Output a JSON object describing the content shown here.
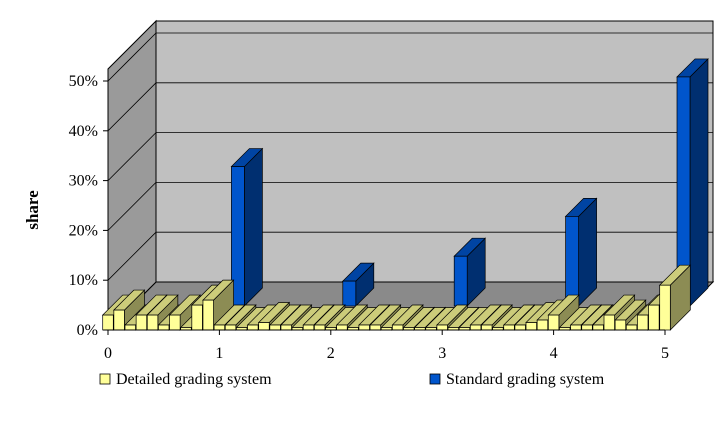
{
  "chart_data": {
    "type": "bar",
    "style": "3d",
    "title": "",
    "xlabel": "",
    "ylabel": "share",
    "ylim": [
      0,
      0.5
    ],
    "xlim": [
      0,
      5
    ],
    "x_ticks": [
      "0",
      "1",
      "2",
      "3",
      "4",
      "5"
    ],
    "y_ticks": [
      "0%",
      "10%",
      "20%",
      "30%",
      "40%",
      "50%"
    ],
    "grid": true,
    "legend_position": "bottom",
    "series": [
      {
        "name": "Detailed grading system",
        "color": "#FFFF99",
        "x": [
          0.0,
          0.1,
          0.2,
          0.3,
          0.4,
          0.5,
          0.6,
          0.7,
          0.8,
          0.9,
          1.0,
          1.1,
          1.2,
          1.3,
          1.4,
          1.5,
          1.6,
          1.7,
          1.8,
          1.9,
          2.0,
          2.1,
          2.2,
          2.3,
          2.4,
          2.5,
          2.6,
          2.7,
          2.8,
          2.9,
          3.0,
          3.1,
          3.2,
          3.3,
          3.4,
          3.5,
          3.6,
          3.7,
          3.8,
          3.9,
          4.0,
          4.1,
          4.2,
          4.3,
          4.4,
          4.5,
          4.6,
          4.7,
          4.8,
          4.9,
          5.0
        ],
        "values": [
          0.03,
          0.04,
          0.01,
          0.03,
          0.03,
          0.01,
          0.03,
          0.005,
          0.05,
          0.06,
          0.01,
          0.01,
          0.005,
          0.01,
          0.015,
          0.01,
          0.01,
          0.005,
          0.01,
          0.01,
          0.005,
          0.01,
          0.005,
          0.01,
          0.01,
          0.005,
          0.01,
          0.005,
          0.005,
          0.005,
          0.01,
          0.005,
          0.005,
          0.01,
          0.01,
          0.005,
          0.01,
          0.01,
          0.015,
          0.02,
          0.03,
          0.005,
          0.01,
          0.01,
          0.01,
          0.03,
          0.02,
          0.01,
          0.03,
          0.05,
          0.09
        ]
      },
      {
        "name": "Standard grading system",
        "color": "#0055CC",
        "x": [
          1,
          2,
          3,
          4,
          5
        ],
        "values": [
          0.28,
          0.05,
          0.1,
          0.18,
          0.46
        ]
      }
    ]
  }
}
